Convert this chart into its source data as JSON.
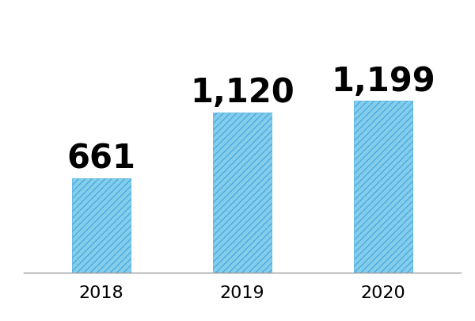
{
  "categories": [
    "2018",
    "2019",
    "2020"
  ],
  "values": [
    661,
    1120,
    1199
  ],
  "labels": [
    "661",
    "1,120",
    "1,199"
  ],
  "bar_color": "#85CEEB",
  "bar_edge_color": "#4AABE0",
  "hatch": "////",
  "background_color": "#ffffff",
  "label_fontsize": 30,
  "tick_fontsize": 16,
  "bar_width": 0.42,
  "ylim": [
    0,
    1500
  ],
  "figwidth": 6.0,
  "figheight": 4.05,
  "dpi": 100
}
